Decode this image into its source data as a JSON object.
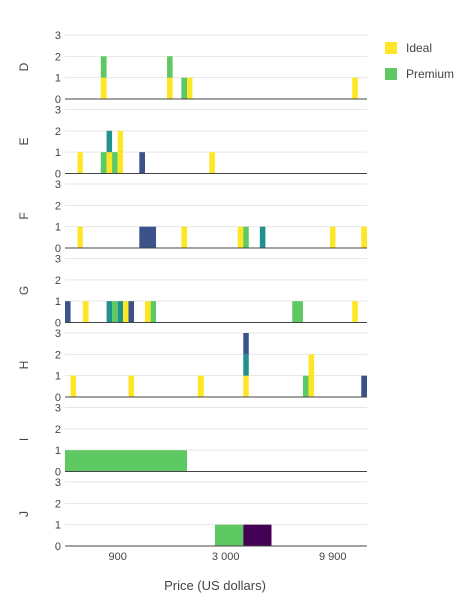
{
  "chart_data": {
    "type": "bar",
    "barmode": "stack",
    "xlabel": "Price (US dollars)",
    "x_scale": "log",
    "x_range": [
      500,
      14500
    ],
    "x_ticks": [
      {
        "value": 900,
        "label": "900"
      },
      {
        "value": 3000,
        "label": "3 000"
      },
      {
        "value": 9900,
        "label": "9 900"
      }
    ],
    "y_range": [
      0,
      3
    ],
    "y_ticks": [
      "0",
      "1",
      "2",
      "3"
    ],
    "legend": {
      "position": "top-right",
      "entries": [
        {
          "name": "Ideal",
          "color": "#fde725"
        },
        {
          "name": "Premium",
          "color": "#5ec962"
        }
      ]
    },
    "colors": {
      "Ideal": "#fde725",
      "Premium": "#5ec962",
      "teal": "#21918c",
      "blue": "#3b528b",
      "purple": "#440154"
    },
    "facets": [
      {
        "label": "D",
        "bars": [
          {
            "x0": 745,
            "x1": 795,
            "segments": [
              {
                "color": "Ideal",
                "count": 1
              },
              {
                "color": "Premium",
                "count": 1
              }
            ]
          },
          {
            "x0": 1560,
            "x1": 1660,
            "segments": [
              {
                "color": "Ideal",
                "count": 1
              },
              {
                "color": "Premium",
                "count": 1
              }
            ]
          },
          {
            "x0": 1830,
            "x1": 1950,
            "segments": [
              {
                "color": "Premium",
                "count": 1
              }
            ]
          },
          {
            "x0": 1950,
            "x1": 2070,
            "segments": [
              {
                "color": "Ideal",
                "count": 1
              }
            ]
          },
          {
            "x0": 12300,
            "x1": 13100,
            "segments": [
              {
                "color": "Ideal",
                "count": 1
              }
            ]
          }
        ]
      },
      {
        "label": "E",
        "bars": [
          {
            "x0": 575,
            "x1": 610,
            "segments": [
              {
                "color": "Ideal",
                "count": 1
              }
            ]
          },
          {
            "x0": 745,
            "x1": 795,
            "segments": [
              {
                "color": "Premium",
                "count": 1
              }
            ]
          },
          {
            "x0": 795,
            "x1": 845,
            "segments": [
              {
                "color": "Ideal",
                "count": 1
              },
              {
                "color": "teal",
                "count": 1
              }
            ]
          },
          {
            "x0": 845,
            "x1": 900,
            "segments": [
              {
                "color": "Premium",
                "count": 1
              }
            ]
          },
          {
            "x0": 900,
            "x1": 955,
            "segments": [
              {
                "color": "Ideal",
                "count": 2
              }
            ]
          },
          {
            "x0": 1145,
            "x1": 1220,
            "segments": [
              {
                "color": "blue",
                "count": 1
              }
            ]
          },
          {
            "x0": 2500,
            "x1": 2660,
            "segments": [
              {
                "color": "Ideal",
                "count": 1
              }
            ]
          }
        ]
      },
      {
        "label": "F",
        "bars": [
          {
            "x0": 575,
            "x1": 610,
            "segments": [
              {
                "color": "Ideal",
                "count": 1
              }
            ]
          },
          {
            "x0": 1145,
            "x1": 1380,
            "segments": [
              {
                "color": "blue",
                "count": 1
              }
            ]
          },
          {
            "x0": 1830,
            "x1": 1950,
            "segments": [
              {
                "color": "Ideal",
                "count": 1
              }
            ]
          },
          {
            "x0": 3430,
            "x1": 3650,
            "segments": [
              {
                "color": "Ideal",
                "count": 1
              }
            ]
          },
          {
            "x0": 3650,
            "x1": 3880,
            "segments": [
              {
                "color": "Premium",
                "count": 1
              }
            ]
          },
          {
            "x0": 4390,
            "x1": 4670,
            "segments": [
              {
                "color": "teal",
                "count": 1
              }
            ]
          },
          {
            "x0": 9600,
            "x1": 10200,
            "segments": [
              {
                "color": "Ideal",
                "count": 1
              }
            ]
          },
          {
            "x0": 13600,
            "x1": 14500,
            "segments": [
              {
                "color": "Ideal",
                "count": 1
              }
            ]
          }
        ]
      },
      {
        "label": "G",
        "bars": [
          {
            "x0": 500,
            "x1": 532,
            "segments": [
              {
                "color": "blue",
                "count": 1
              }
            ]
          },
          {
            "x0": 610,
            "x1": 650,
            "segments": [
              {
                "color": "Ideal",
                "count": 1
              }
            ]
          },
          {
            "x0": 795,
            "x1": 845,
            "segments": [
              {
                "color": "teal",
                "count": 1
              }
            ]
          },
          {
            "x0": 845,
            "x1": 900,
            "segments": [
              {
                "color": "Premium",
                "count": 1
              }
            ]
          },
          {
            "x0": 900,
            "x1": 955,
            "segments": [
              {
                "color": "teal",
                "count": 1
              }
            ]
          },
          {
            "x0": 955,
            "x1": 1015,
            "segments": [
              {
                "color": "Ideal",
                "count": 1
              }
            ]
          },
          {
            "x0": 1015,
            "x1": 1080,
            "segments": [
              {
                "color": "blue",
                "count": 1
              }
            ]
          },
          {
            "x0": 1220,
            "x1": 1300,
            "segments": [
              {
                "color": "Ideal",
                "count": 1
              }
            ]
          },
          {
            "x0": 1300,
            "x1": 1380,
            "segments": [
              {
                "color": "Premium",
                "count": 1
              }
            ]
          },
          {
            "x0": 6300,
            "x1": 7100,
            "segments": [
              {
                "color": "Premium",
                "count": 1
              }
            ]
          },
          {
            "x0": 12300,
            "x1": 13100,
            "segments": [
              {
                "color": "Ideal",
                "count": 1
              }
            ]
          }
        ]
      },
      {
        "label": "H",
        "bars": [
          {
            "x0": 532,
            "x1": 565,
            "segments": [
              {
                "color": "Ideal",
                "count": 1
              }
            ]
          },
          {
            "x0": 1015,
            "x1": 1080,
            "segments": [
              {
                "color": "Ideal",
                "count": 1
              }
            ]
          },
          {
            "x0": 2200,
            "x1": 2350,
            "segments": [
              {
                "color": "Ideal",
                "count": 1
              }
            ]
          },
          {
            "x0": 3650,
            "x1": 3880,
            "segments": [
              {
                "color": "Ideal",
                "count": 1
              },
              {
                "color": "teal",
                "count": 1
              },
              {
                "color": "blue",
                "count": 1
              }
            ]
          },
          {
            "x0": 7100,
            "x1": 7560,
            "segments": [
              {
                "color": "Premium",
                "count": 1
              }
            ]
          },
          {
            "x0": 7560,
            "x1": 8040,
            "segments": [
              {
                "color": "Ideal",
                "count": 2
              }
            ]
          },
          {
            "x0": 13600,
            "x1": 14500,
            "segments": [
              {
                "color": "blue",
                "count": 1
              }
            ]
          }
        ]
      },
      {
        "label": "I",
        "bars": [
          {
            "x0": 500,
            "x1": 1950,
            "segments": [
              {
                "color": "Premium",
                "count": 1
              }
            ]
          }
        ]
      },
      {
        "label": "J",
        "bars": [
          {
            "x0": 2660,
            "x1": 3650,
            "segments": [
              {
                "color": "Premium",
                "count": 1
              }
            ]
          },
          {
            "x0": 3650,
            "x1": 5000,
            "segments": [
              {
                "color": "purple",
                "count": 1
              }
            ]
          }
        ]
      }
    ]
  }
}
